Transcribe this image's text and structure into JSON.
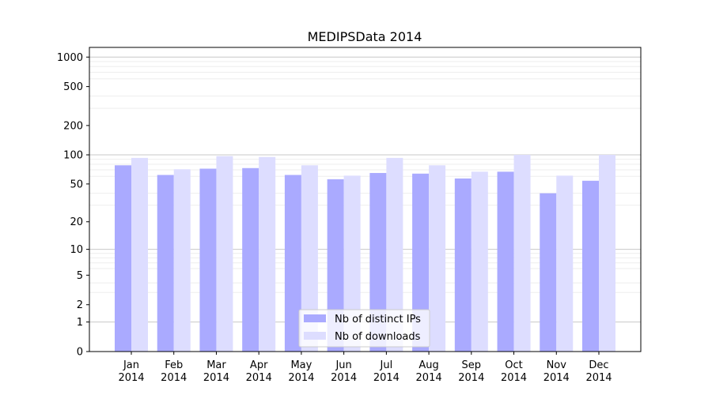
{
  "chart_data": {
    "type": "bar",
    "title": "MEDIPSData 2014",
    "xlabel": "",
    "ylabel": "",
    "scale": "log(1+y)",
    "categories": [
      {
        "month": "Jan",
        "year": "2014"
      },
      {
        "month": "Feb",
        "year": "2014"
      },
      {
        "month": "Mar",
        "year": "2014"
      },
      {
        "month": "Apr",
        "year": "2014"
      },
      {
        "month": "May",
        "year": "2014"
      },
      {
        "month": "Jun",
        "year": "2014"
      },
      {
        "month": "Jul",
        "year": "2014"
      },
      {
        "month": "Aug",
        "year": "2014"
      },
      {
        "month": "Sep",
        "year": "2014"
      },
      {
        "month": "Oct",
        "year": "2014"
      },
      {
        "month": "Nov",
        "year": "2014"
      },
      {
        "month": "Dec",
        "year": "2014"
      }
    ],
    "yticks": [
      0,
      1,
      2,
      5,
      10,
      20,
      50,
      100,
      200,
      500,
      1000
    ],
    "series": [
      {
        "name": "Nb of distinct IPs",
        "color": "#aaaaff",
        "values": [
          78,
          62,
          72,
          73,
          62,
          56,
          65,
          64,
          57,
          67,
          40,
          54
        ]
      },
      {
        "name": "Nb of downloads",
        "color": "#ddddff",
        "values": [
          93,
          71,
          97,
          95,
          78,
          61,
          93,
          78,
          67,
          100,
          61,
          100
        ]
      }
    ],
    "legend_position": "lower-center",
    "grid": true
  }
}
